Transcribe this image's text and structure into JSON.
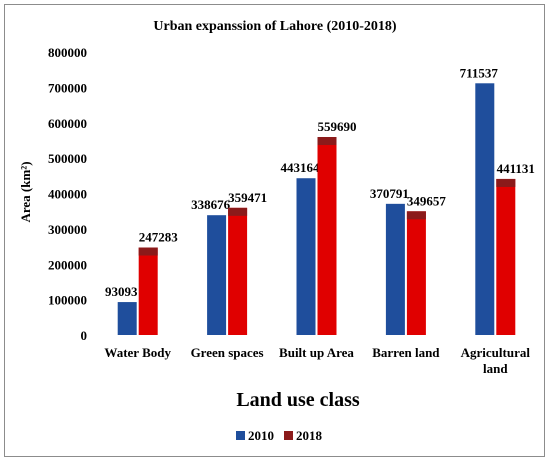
{
  "chart_data": {
    "type": "bar",
    "title": "Urban expanssion of Lahore (2010-2018)",
    "xlabel": "Land use class",
    "ylabel": "Area (km²)",
    "ylim": [
      0,
      800000
    ],
    "yticks": [
      "0",
      "100000",
      "200000",
      "300000",
      "400000",
      "500000",
      "600000",
      "700000",
      "800000"
    ],
    "categories": [
      "Water Body",
      "Green spaces",
      "Built up Area",
      "Barren land",
      "Agricultural land"
    ],
    "category_lines": [
      [
        "Water Body"
      ],
      [
        "Green spaces"
      ],
      [
        "Built up Area"
      ],
      [
        "Barren land"
      ],
      [
        "Agricultural",
        "land"
      ]
    ],
    "series": [
      {
        "name": "2010",
        "color": "#1f4e9c",
        "values": [
          93093,
          338676,
          443164,
          370791,
          711537
        ],
        "labels": [
          "93093",
          "338676",
          "443164",
          "370791",
          "711537"
        ]
      },
      {
        "name": "2018",
        "color": "#e00000",
        "values": [
          247283,
          359471,
          559690,
          349657,
          441131
        ],
        "labels": [
          "247283",
          "359471",
          "559690",
          "349657",
          "441131"
        ]
      }
    ],
    "legend_position": "bottom-right",
    "grid": false
  }
}
